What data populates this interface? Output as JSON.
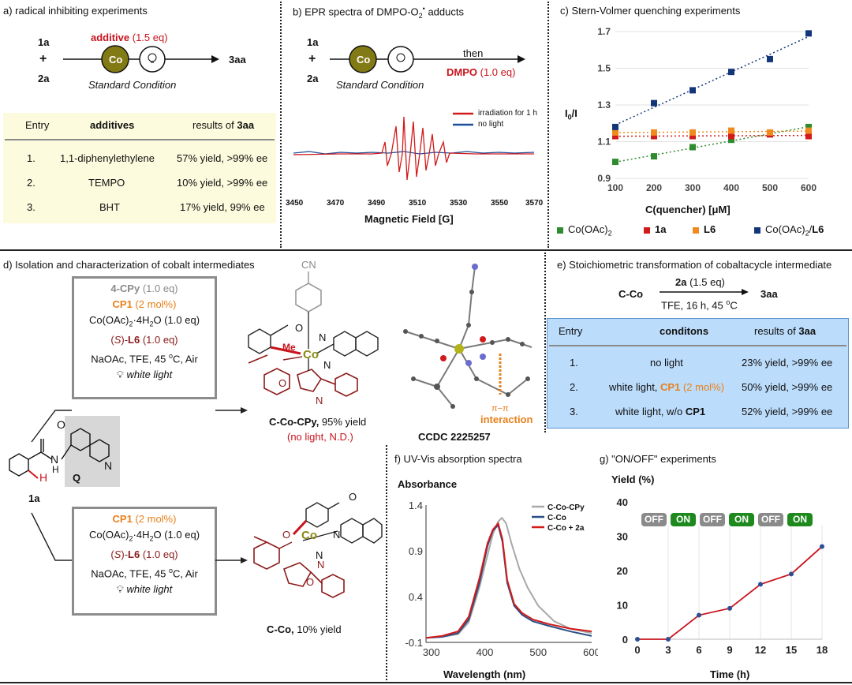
{
  "panel_a": {
    "title": "a) radical inhibiting experiments",
    "reactant1": "1a",
    "plus": "+",
    "reactant2": "2a",
    "additive_label": "additive",
    "additive_amount": "(1.5 eq)",
    "catalyst": "Co",
    "condition": "Standard Condition",
    "product": "3aa",
    "table": {
      "headers": [
        "Entry",
        "additives",
        "results of",
        "3aa"
      ],
      "rows": [
        {
          "entry": "1.",
          "additive": "1,1-diphenylethylene",
          "result": "57% yield, >99% ee"
        },
        {
          "entry": "2.",
          "additive": "TEMPO",
          "result": "10% yield, >99% ee"
        },
        {
          "entry": "3.",
          "additive": "BHT",
          "result": "17% yield, 99% ee"
        }
      ]
    }
  },
  "panel_b": {
    "title": "b) EPR  spectra of DMPO-O",
    "title_sub": "2",
    "title_sup": "•",
    "title_end": " adducts",
    "reactant1": "1a",
    "plus": "+",
    "reactant2": "2a",
    "catalyst": "Co",
    "condition": "Standard Condition",
    "then": "then",
    "dmpo": "DMPO",
    "dmpo_amount": "(1.0 eq)",
    "legend": [
      {
        "name": "irradiation for 1 h",
        "color": "#d21a1a"
      },
      {
        "name": "no light",
        "color": "#1f4e9c"
      }
    ],
    "x_ticks": [
      "3450",
      "3470",
      "3490",
      "3510",
      "3530",
      "3550",
      "3570"
    ],
    "xlabel": "Magnetic Field [G]"
  },
  "panel_c": {
    "title": "c) Stern-Volmer quenching experiments",
    "ylabel_main": "I",
    "ylabel_sub": "0",
    "ylabel_end": "/I",
    "xlabel_pre": "C",
    "xlabel_mid": "(quencher) [",
    "xlabel_mu": "μ",
    "xlabel_end": "M]",
    "legend": [
      {
        "name": "Co(OAc)",
        "sub": "2",
        "color": "#2e8b2e"
      },
      {
        "name": "1a",
        "color": "#d21a1a",
        "bold": true
      },
      {
        "name": "L6",
        "color": "#f08a1e",
        "bold": true
      },
      {
        "name": "Co(OAc)",
        "sub": "2",
        "suffix": "/",
        "suffix_bold": "L6",
        "color": "#13357a"
      }
    ]
  },
  "panel_d": {
    "title": "d) Isolation and characterization of cobalt intermediates",
    "top_box": {
      "l1_bold": "4-CPy",
      "l1_rest": " (1.0 eq)",
      "l2_bold": "CP1",
      "l2_rest": " (2 mol%)",
      "l3": "Co(OAc)",
      "l3_sub": "2",
      "l3_end": "·4H",
      "l3_sub2": "2",
      "l3_end2": "O (1.0 eq)",
      "l4_pre": "(",
      "l4_s": "S",
      "l4_mid": ")-",
      "l4_bold": "L6",
      "l4_rest": " (1.0 eq)",
      "l5": "NaOAc, TFE, 45 ",
      "l5_sup": "o",
      "l5_end": "C, Air",
      "light": "white light"
    },
    "bottom_box": {
      "l2_bold": "CP1",
      "l2_rest": " (2 mol%)",
      "l3": "Co(OAc)",
      "l3_sub": "2",
      "l3_end": "·4H",
      "l3_sub2": "2",
      "l3_end2": "O (1.0 eq)",
      "l4_pre": "(",
      "l4_s": "S",
      "l4_mid": ")-",
      "l4_bold": "L6",
      "l4_rest": " (1.0 eq)",
      "l5": "NaOAc, TFE, 45 ",
      "l5_sup": "o",
      "l5_end": "C, Air",
      "light": "white light"
    },
    "substrate_label": "1a",
    "quinoline_label": "Q",
    "atom_h": "H",
    "atom_n": "N",
    "atom_o": "O",
    "atom_nh": "H",
    "product1_bold": "C-Co-CPy,",
    "product1_rest": " 95% yield",
    "product1_note": "(no light, N.D.)",
    "product2_bold": "C-Co,",
    "product2_rest": " 10% yield",
    "cn_label": "CN",
    "co_label": "Co",
    "me_label": "Me",
    "crystal_label": "CCDC 2225257",
    "pi_label": "π−π",
    "interaction_label": "interaction"
  },
  "panel_e": {
    "title": "e) Stoichiometric transformation of cobaltacycle intermediate",
    "reactant": "C-Co",
    "reagent_bold": "2a",
    "reagent_rest": " (1.5 eq)",
    "conditions_pre": "TFE, 16 h, 45 ",
    "conditions_sup": "o",
    "conditions_end": "C",
    "product": "3aa",
    "table": {
      "headers": [
        "Entry",
        "conditons",
        "results of",
        "3aa"
      ],
      "rows": [
        {
          "entry": "1.",
          "pre": "no light",
          "bold": "",
          "post": "",
          "result": "23% yield, >99% ee"
        },
        {
          "entry": "2.",
          "pre": "white light, ",
          "bold": "CP1",
          "post": " (2 mol%)",
          "result": "50% yield, >99% ee"
        },
        {
          "entry": "3.",
          "pre": "white light, w/o ",
          "bold": "CP1",
          "post": "",
          "result": "52% yield, >99% ee"
        }
      ]
    }
  },
  "panel_f": {
    "title": "f) UV-Vis absorption spectra",
    "ylabel": "Absorbance",
    "xlabel": "Wavelength (nm)",
    "legend": [
      {
        "name": "C-Co-CPy",
        "color": "#a8a8a8"
      },
      {
        "name": "C-Co",
        "color": "#2a4f86"
      },
      {
        "name": "C-Co + 2a",
        "color": "#d21a1a"
      }
    ]
  },
  "panel_g": {
    "title": "g) \"ON/OFF\" experiments",
    "ylabel": "Yield (%)",
    "xlabel": "Time (h)",
    "onoff": [
      "OFF",
      "ON",
      "OFF",
      "ON",
      "OFF",
      "ON"
    ]
  },
  "chart_data": [
    {
      "type": "scatter",
      "panel": "c",
      "x": [
        100,
        200,
        300,
        400,
        500,
        600
      ],
      "xlim": [
        100,
        600
      ],
      "ylim": [
        0.9,
        1.7
      ],
      "x_ticks": [
        100,
        200,
        300,
        400,
        500,
        600
      ],
      "y_ticks": [
        0.9,
        1.1,
        1.3,
        1.5,
        1.7
      ],
      "series": [
        {
          "name": "Co(OAc)2",
          "color": "#2e8b2e",
          "values": [
            0.99,
            1.02,
            1.07,
            1.11,
            1.14,
            1.18
          ]
        },
        {
          "name": "1a",
          "color": "#d21a1a",
          "values": [
            1.13,
            1.13,
            1.13,
            1.13,
            1.14,
            1.13
          ]
        },
        {
          "name": "L6",
          "color": "#f08a1e",
          "values": [
            1.15,
            1.15,
            1.15,
            1.16,
            1.15,
            1.16
          ]
        },
        {
          "name": "Co(OAc)2/L6",
          "color": "#13357a",
          "values": [
            1.18,
            1.31,
            1.38,
            1.48,
            1.55,
            1.69
          ]
        }
      ]
    },
    {
      "type": "line",
      "panel": "f",
      "xlim": [
        290,
        600
      ],
      "ylim": [
        -0.1,
        1.4
      ],
      "x_ticks": [
        300,
        400,
        500,
        600
      ],
      "y_ticks": [
        -0.1,
        0.4,
        0.9,
        1.4
      ],
      "series": [
        {
          "name": "C-Co-CPy",
          "color": "#a8a8a8",
          "x": [
            290,
            320,
            350,
            370,
            390,
            405,
            415,
            425,
            432,
            440,
            450,
            465,
            480,
            500,
            530,
            560,
            600
          ],
          "values": [
            -0.05,
            -0.04,
            -0.01,
            0.12,
            0.5,
            0.85,
            1.08,
            1.22,
            1.26,
            1.2,
            0.98,
            0.7,
            0.5,
            0.3,
            0.13,
            0.05,
            0.0
          ]
        },
        {
          "name": "C-Co",
          "color": "#2a4f86",
          "x": [
            290,
            320,
            350,
            370,
            390,
            405,
            415,
            425,
            433,
            442,
            455,
            470,
            490,
            520,
            560,
            600
          ],
          "values": [
            -0.05,
            -0.04,
            0.0,
            0.15,
            0.55,
            0.95,
            1.12,
            1.18,
            1.0,
            0.55,
            0.3,
            0.2,
            0.13,
            0.08,
            0.02,
            -0.03
          ]
        },
        {
          "name": "C-Co + 2a",
          "color": "#d21a1a",
          "x": [
            290,
            320,
            350,
            370,
            390,
            405,
            415,
            425,
            433,
            442,
            455,
            470,
            490,
            520,
            560,
            600
          ],
          "values": [
            -0.05,
            -0.03,
            0.02,
            0.18,
            0.6,
            0.98,
            1.13,
            1.2,
            1.03,
            0.58,
            0.32,
            0.22,
            0.15,
            0.1,
            0.05,
            0.02
          ]
        }
      ]
    },
    {
      "type": "line",
      "panel": "g",
      "x": [
        0,
        3,
        6,
        9,
        12,
        15,
        18
      ],
      "values": [
        0,
        0,
        7,
        9,
        16,
        19,
        27
      ],
      "xlim": [
        0,
        18
      ],
      "ylim": [
        0,
        40
      ],
      "x_ticks": [
        0,
        3,
        6,
        9,
        12,
        15,
        18
      ],
      "y_ticks": [
        0,
        10,
        20,
        30,
        40
      ]
    }
  ]
}
